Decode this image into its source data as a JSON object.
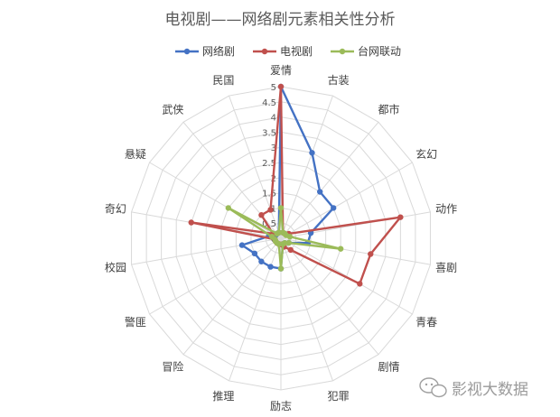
{
  "chart_data": {
    "type": "radar",
    "title": "电视剧——网络剧元素相关性分析",
    "categories": [
      "爱情",
      "古装",
      "都市",
      "玄幻",
      "动作",
      "喜剧",
      "青春",
      "剧情",
      "犯罪",
      "励志",
      "推理",
      "冒险",
      "警匪",
      "校园",
      "奇幻",
      "悬疑",
      "武侠",
      "民国"
    ],
    "rlim": [
      0,
      5
    ],
    "ticks": [
      "0",
      "0.5",
      "1",
      "1.5",
      "2",
      "2.5",
      "3",
      "3.5",
      "4",
      "4.5",
      "5"
    ],
    "legend_position": "top",
    "series": [
      {
        "name": "网络剧",
        "color": "#4472c4",
        "values": [
          5.0,
          3.0,
          2.0,
          2.0,
          1.0,
          0.9,
          0.3,
          0.2,
          0.2,
          1.0,
          1.0,
          1.0,
          1.0,
          1.3,
          0.4,
          0.2,
          0.2,
          0.2
        ]
      },
      {
        "name": "电视剧",
        "color": "#c0504d",
        "values": [
          5.0,
          0.2,
          0.2,
          0.3,
          4.0,
          3.0,
          3.0,
          0.5,
          0.3,
          0.2,
          0.2,
          0.2,
          0.2,
          0.2,
          3.0,
          0.3,
          1.0,
          1.0
        ]
      },
      {
        "name": "台网联动",
        "color": "#9bbb59",
        "values": [
          1.0,
          0.2,
          0.2,
          0.2,
          0.3,
          2.0,
          0.3,
          0.2,
          0.2,
          1.0,
          0.2,
          0.2,
          0.2,
          0.2,
          0.3,
          2.0,
          0.2,
          0.2
        ]
      }
    ]
  },
  "watermark": {
    "text": "影视大数据",
    "icon": "wechat-icon"
  }
}
